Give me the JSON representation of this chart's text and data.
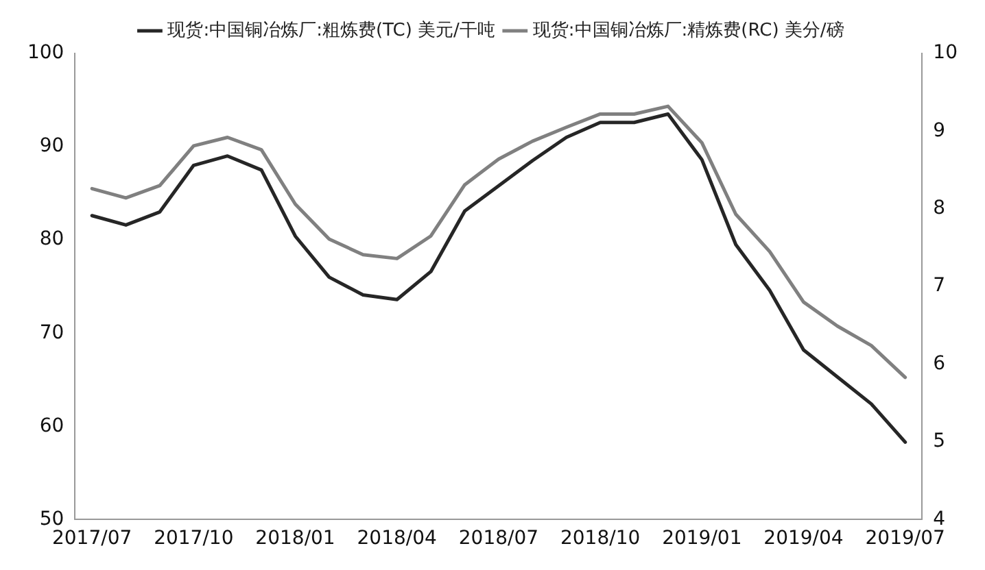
{
  "chart_data": {
    "type": "line",
    "categories": [
      "2017/07",
      null,
      null,
      "2017/10",
      null,
      null,
      "2018/01",
      null,
      null,
      "2018/04",
      null,
      null,
      "2018/07",
      null,
      null,
      "2018/10",
      null,
      null,
      "2019/01",
      null,
      null,
      "2019/04",
      null,
      null,
      "2019/07"
    ],
    "series": [
      {
        "name": "现货:中国铜冶炼厂:粗炼费(TC) 美元/干吨",
        "color": "#262626",
        "axis": "y",
        "values": [
          82.6,
          81.6,
          83.0,
          88.0,
          89.0,
          87.5,
          80.4,
          76.0,
          74.1,
          73.6,
          76.6,
          83.1,
          85.8,
          88.5,
          91.0,
          92.6,
          92.6,
          93.5,
          88.6,
          79.5,
          74.6,
          68.2,
          65.3,
          62.4,
          58.3
        ]
      },
      {
        "name": "现货:中国铜冶炼厂:精炼费(RC) 美分/磅",
        "color": "#808080",
        "axis": "y2",
        "values": [
          8.26,
          8.14,
          8.3,
          8.81,
          8.92,
          8.76,
          8.06,
          7.61,
          7.41,
          7.36,
          7.65,
          8.31,
          8.64,
          8.87,
          9.05,
          9.22,
          9.22,
          9.32,
          8.85,
          7.93,
          7.45,
          6.8,
          6.49,
          6.24,
          5.83
        ]
      }
    ],
    "ylim": [
      50,
      100
    ],
    "yticks": [
      50,
      60,
      70,
      80,
      90,
      100
    ],
    "y2lim": [
      4,
      10
    ],
    "y2ticks": [
      4,
      5,
      6,
      7,
      8,
      9,
      10
    ],
    "grid": false,
    "legend": "top",
    "marker": "none",
    "line_style": "solid"
  }
}
